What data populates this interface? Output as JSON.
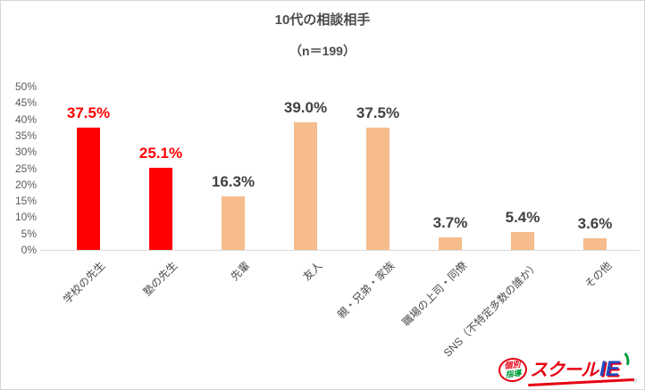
{
  "chart_data": {
    "type": "bar",
    "title": "10代の相談相手",
    "subtitle": "（n＝199）",
    "categories": [
      "学校の先生",
      "塾の先生",
      "先輩",
      "友人",
      "親・兄弟・家族",
      "職場の上司・同僚",
      "SNS（不特定多数の誰か）",
      "その他"
    ],
    "values": [
      37.5,
      25.1,
      16.3,
      39.0,
      37.5,
      3.7,
      5.4,
      3.6
    ],
    "value_labels": [
      "37.5%",
      "25.1%",
      "16.3%",
      "39.0%",
      "37.5%",
      "3.7%",
      "5.4%",
      "3.6%"
    ],
    "highlighted": [
      true,
      true,
      false,
      false,
      false,
      false,
      false,
      false
    ],
    "xlabel": "",
    "ylabel": "",
    "ylim": [
      0,
      50
    ],
    "ytick_step": 5,
    "ytick_labels": [
      "0%",
      "5%",
      "10%",
      "15%",
      "20%",
      "25%",
      "30%",
      "35%",
      "40%",
      "45%",
      "50%"
    ],
    "grid": false,
    "legend": "none",
    "bar_color_default": "#F6BC8C",
    "bar_color_highlight": "#FF0000",
    "label_color_default": "#404040",
    "label_color_highlight": "#FF0000",
    "axis_line_color": "#D9D9D9",
    "tick_label_color": "#595959",
    "category_label_color": "#4A4A4A"
  },
  "logo": {
    "badge_line1": "個別",
    "badge_line2": "指導",
    "brand_text": "スクール",
    "brand_suffix": "IE",
    "registered_mark": "®",
    "colors": {
      "brand_red": "#E60012",
      "suffix_blue": "#2148BE",
      "accent_green": "#009B3C"
    }
  }
}
